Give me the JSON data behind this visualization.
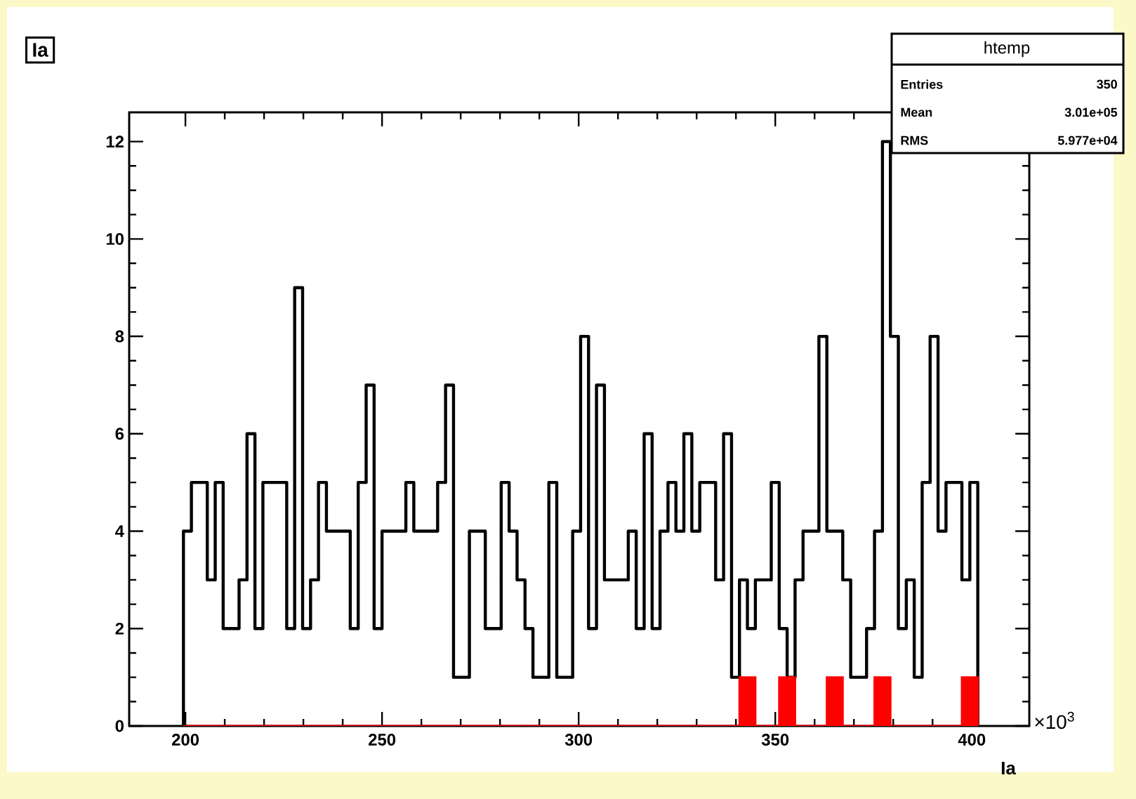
{
  "chart_data": {
    "type": "histogram",
    "title": "Ia",
    "xlabel": "Ia",
    "annotations": [
      "htemp",
      "Entries",
      "350",
      "Mean",
      "3.01e+05",
      "RMS",
      "5.977e+04",
      "×10$^{3}$"
    ],
    "bins": [
      199.5,
      201.52,
      203.54,
      205.56,
      207.58,
      209.6,
      211.62,
      213.64,
      215.66,
      217.68,
      219.7,
      221.72,
      223.74,
      225.76,
      227.78,
      229.8,
      231.82,
      233.84,
      235.86,
      237.88,
      239.9,
      241.92,
      243.94,
      245.96,
      247.98,
      250,
      252.02,
      254.04,
      256.06,
      258.08,
      260.1,
      262.12,
      264.14,
      266.16,
      268.18,
      270.2,
      272.22,
      274.24,
      276.26,
      278.28,
      280.3,
      282.32,
      284.34,
      286.36,
      288.38,
      290.4,
      292.42,
      294.44,
      296.46,
      298.48,
      300.5,
      302.52,
      304.54,
      306.56,
      308.58,
      310.6,
      312.62,
      314.64,
      316.66,
      318.68,
      320.7,
      322.72,
      324.74,
      326.76,
      328.78,
      330.8,
      332.82,
      334.84,
      336.86,
      338.88,
      340.9,
      342.92,
      344.94,
      346.96,
      348.98,
      351,
      353.02,
      355.04,
      357.06,
      359.08,
      361.1,
      363.12,
      365.14,
      367.16,
      369.18,
      371.2,
      373.22,
      375.24,
      377.26,
      379.28,
      381.3,
      383.32,
      385.34,
      387.36,
      389.38,
      391.4,
      393.42,
      395.44,
      397.46,
      399.48,
      401.5
    ],
    "series": [
      {
        "color": "#000000",
        "values": [
          4,
          5,
          5,
          3,
          5,
          2,
          2,
          3,
          6,
          2,
          5,
          5,
          5,
          2,
          9,
          2,
          3,
          5,
          4,
          4,
          4,
          2,
          5,
          7,
          2,
          4,
          4,
          4,
          5,
          4,
          4,
          4,
          5,
          7,
          1,
          1,
          4,
          4,
          2,
          2,
          5,
          4,
          3,
          2,
          1,
          1,
          5,
          1,
          1,
          4,
          8,
          2,
          7,
          3,
          3,
          3,
          4,
          2,
          6,
          2,
          4,
          5,
          4,
          6,
          4,
          5,
          5,
          3,
          6,
          1,
          3,
          2,
          3,
          3,
          5,
          2,
          1,
          3,
          4,
          4,
          8,
          4,
          4,
          3,
          1,
          1,
          2,
          4,
          12,
          8,
          2,
          3,
          1,
          5,
          8,
          4,
          5,
          5,
          3,
          5
        ]
      },
      {
        "color": "#ff0000",
        "values": [
          0,
          0,
          0,
          0,
          0,
          0,
          0,
          0,
          0,
          0,
          0,
          0,
          0,
          0,
          0,
          0,
          0,
          0,
          0,
          0,
          0,
          0,
          0,
          0,
          0,
          0,
          0,
          0,
          0,
          0,
          0,
          0,
          0,
          0,
          0,
          0,
          0,
          0,
          0,
          0,
          0,
          0,
          0,
          0,
          0,
          0,
          0,
          0,
          0,
          0,
          0,
          0,
          0,
          0,
          0,
          0,
          0,
          0,
          0,
          0,
          0,
          0,
          0,
          0,
          0,
          0,
          0,
          0,
          0,
          0,
          1,
          1,
          0,
          0,
          0,
          1,
          1,
          0,
          0,
          0,
          0,
          1,
          1,
          0,
          0,
          0,
          0,
          1,
          1,
          0,
          0,
          0,
          0,
          0,
          0,
          0,
          0,
          0,
          1,
          1
        ]
      }
    ],
    "xlim": [
      185.7,
      414.6
    ],
    "ylim": [
      0,
      12.6
    ],
    "xticks": [
      200,
      250,
      300,
      350,
      400
    ],
    "yticks": [
      0,
      2,
      4,
      6,
      8,
      10,
      12
    ],
    "grid": false
  }
}
